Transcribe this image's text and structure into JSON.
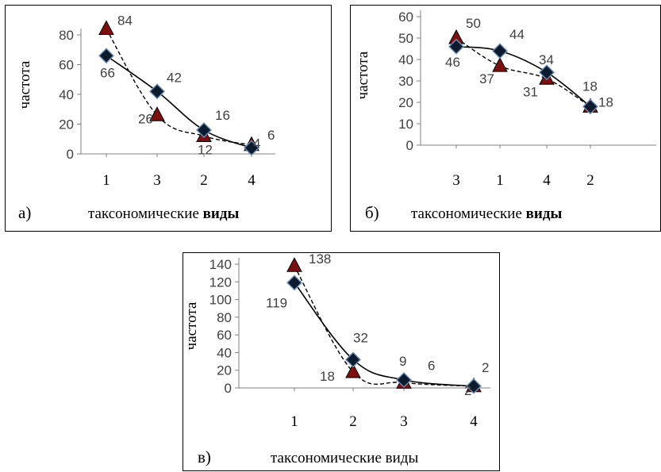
{
  "chart_data": [
    {
      "type": "line",
      "panel_label": "а)",
      "xlabel": "таксономические",
      "xlabel_bold": "виды",
      "ylabel": "частота",
      "categories": [
        "1",
        "3",
        "2",
        "4"
      ],
      "ylim": [
        0,
        80
      ],
      "yticks": [
        "0",
        "20",
        "40",
        "60",
        "80"
      ],
      "grid": false,
      "series": [
        {
          "marker": "diamond",
          "line": "solid",
          "values": [
            66,
            42,
            16,
            4
          ],
          "labels": [
            "66",
            "42",
            "16",
            "4"
          ],
          "color": "#0d1b2e"
        },
        {
          "marker": "triangle",
          "line": "dashed",
          "values": [
            84,
            26,
            12,
            6
          ],
          "labels": [
            "84",
            "26",
            "12",
            "6"
          ],
          "color": "#7a1010"
        }
      ]
    },
    {
      "type": "line",
      "panel_label": "б)",
      "xlabel": "таксономические",
      "xlabel_bold": "виды",
      "ylabel": "частота",
      "categories": [
        "3",
        "1",
        "4",
        "2"
      ],
      "ylim": [
        0,
        60
      ],
      "yticks": [
        "0",
        "10",
        "20",
        "30",
        "40",
        "50",
        "60"
      ],
      "grid": false,
      "series": [
        {
          "marker": "diamond",
          "line": "solid",
          "values": [
            46,
            44,
            34,
            18
          ],
          "labels": [
            "46",
            "44",
            "34",
            "18"
          ],
          "color": "#0d1b2e"
        },
        {
          "marker": "triangle",
          "line": "dashed",
          "values": [
            50,
            37,
            31,
            18
          ],
          "labels": [
            "50",
            "37",
            "31",
            "18"
          ],
          "color": "#7a1010"
        }
      ]
    },
    {
      "type": "line",
      "panel_label": "в)",
      "xlabel": "таксономические виды",
      "xlabel_bold": "",
      "ylabel": "частота",
      "categories": [
        "1",
        "2",
        "3",
        "4"
      ],
      "ylim": [
        0,
        140
      ],
      "yticks": [
        "0",
        "20",
        "40",
        "60",
        "80",
        "100",
        "120",
        "140"
      ],
      "grid": false,
      "series": [
        {
          "marker": "diamond",
          "line": "solid",
          "values": [
            119,
            32,
            9,
            2
          ],
          "labels": [
            "119",
            "32",
            "9",
            "2"
          ],
          "color": "#0d1b2e"
        },
        {
          "marker": "triangle",
          "line": "dashed",
          "values": [
            138,
            18,
            6,
            2
          ],
          "labels": [
            "138",
            "18",
            "6",
            "2"
          ],
          "color": "#7a1010"
        }
      ]
    }
  ]
}
